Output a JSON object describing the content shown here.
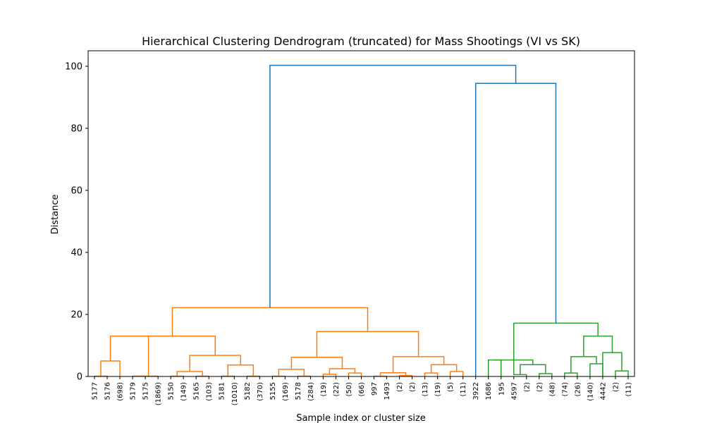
{
  "chart_data": {
    "type": "dendrogram",
    "title": "Hierarchical Clustering Dendrogram (truncated) for Mass Shootings (VI vs SK)",
    "xlabel": "Sample index or cluster size",
    "ylabel": "Distance",
    "ylim": [
      0,
      105
    ],
    "yticks": [
      0,
      20,
      40,
      60,
      80,
      100
    ],
    "grid": false,
    "colors": {
      "above_threshold": "#1f77b4",
      "cluster_1": "#ff7f0e",
      "cluster_2": "#2ca02c"
    },
    "leaves": [
      "5177",
      "5176",
      "(698)",
      "5179",
      "5175",
      "(1869)",
      "5150",
      "(149)",
      "5165",
      "(103)",
      "5181",
      "(1010)",
      "5182",
      "(370)",
      "5155",
      "(169)",
      "5178",
      "(284)",
      "(19)",
      "(22)",
      "(50)",
      "(66)",
      "997",
      "1493",
      "(2)",
      "(2)",
      "(13)",
      "(19)",
      "(5)",
      "(11)",
      "3922",
      "1686",
      "195",
      "4597",
      "(2)",
      "(2)",
      "(48)",
      "(74)",
      "(26)",
      "(140)",
      "4442",
      "(2)",
      "(11)"
    ],
    "merges": [
      {
        "left": 0,
        "right": 1,
        "height": 0.1,
        "color": "cluster_1"
      },
      {
        "left": 0.5,
        "right": 2,
        "height": 5.0,
        "color": "cluster_1"
      },
      {
        "left": 3,
        "right": 4,
        "height": 0.1,
        "color": "cluster_1"
      },
      {
        "left": 3.5,
        "right": 5,
        "height": 0.1,
        "color": "cluster_1"
      },
      {
        "left": 1.25,
        "right": 4.25,
        "height": 13.0,
        "color": "cluster_1"
      },
      {
        "left": 6,
        "right": 7,
        "height": 0.1,
        "color": "cluster_1"
      },
      {
        "left": 8,
        "right": 9,
        "height": 0.1,
        "color": "cluster_1"
      },
      {
        "left": 6.5,
        "right": 8.5,
        "height": 1.6,
        "color": "cluster_1"
      },
      {
        "left": 10,
        "right": 11,
        "height": 0.1,
        "color": "cluster_1"
      },
      {
        "left": 12,
        "right": 13,
        "height": 0.1,
        "color": "cluster_1"
      },
      {
        "left": 10.5,
        "right": 12.5,
        "height": 3.7,
        "color": "cluster_1"
      },
      {
        "left": 7.5,
        "right": 11.5,
        "height": 6.8,
        "color": "cluster_1"
      },
      {
        "left": 2.75,
        "right": 9.5,
        "height": 13.0,
        "color": "cluster_1"
      },
      {
        "left": 14,
        "right": 15,
        "height": 0.1,
        "color": "cluster_1"
      },
      {
        "left": 16,
        "right": 17,
        "height": 0.1,
        "color": "cluster_1"
      },
      {
        "left": 14.5,
        "right": 16.5,
        "height": 2.3,
        "color": "cluster_1"
      },
      {
        "left": 18,
        "right": 19,
        "height": 0.7,
        "color": "cluster_1"
      },
      {
        "left": 20,
        "right": 21,
        "height": 1.1,
        "color": "cluster_1"
      },
      {
        "left": 18.5,
        "right": 20.5,
        "height": 2.5,
        "color": "cluster_1"
      },
      {
        "left": 15.5,
        "right": 19.5,
        "height": 6.2,
        "color": "cluster_1"
      },
      {
        "left": 22,
        "right": 23,
        "height": 0.1,
        "color": "cluster_1"
      },
      {
        "left": 24,
        "right": 25,
        "height": 0.3,
        "color": "cluster_1"
      },
      {
        "left": 22.5,
        "right": 24.5,
        "height": 1.2,
        "color": "cluster_1"
      },
      {
        "left": 26,
        "right": 27,
        "height": 1.1,
        "color": "cluster_1"
      },
      {
        "left": 28,
        "right": 29,
        "height": 1.6,
        "color": "cluster_1"
      },
      {
        "left": 26.5,
        "right": 28.5,
        "height": 3.8,
        "color": "cluster_1"
      },
      {
        "left": 23.5,
        "right": 27.5,
        "height": 6.4,
        "color": "cluster_1"
      },
      {
        "left": 17.5,
        "right": 25.5,
        "height": 14.5,
        "color": "cluster_1"
      },
      {
        "left": 6.125,
        "right": 21.5,
        "height": 22.2,
        "color": "cluster_1"
      },
      {
        "left": 31,
        "right": 32,
        "height": 5.3,
        "color": "cluster_2"
      },
      {
        "left": 33,
        "right": 34,
        "height": 0.6,
        "color": "cluster_2"
      },
      {
        "left": 35,
        "right": 36,
        "height": 0.9,
        "color": "cluster_2"
      },
      {
        "left": 33.5,
        "right": 35.5,
        "height": 3.8,
        "color": "cluster_2"
      },
      {
        "left": 31.5,
        "right": 34.5,
        "height": 5.3,
        "color": "cluster_2"
      },
      {
        "left": 37,
        "right": 38,
        "height": 1.1,
        "color": "cluster_2"
      },
      {
        "left": 39,
        "right": 40,
        "height": 4.1,
        "color": "cluster_2"
      },
      {
        "left": 37.5,
        "right": 39.5,
        "height": 6.4,
        "color": "cluster_2"
      },
      {
        "left": 41,
        "right": 42,
        "height": 1.8,
        "color": "cluster_2"
      },
      {
        "left": 40,
        "right": 41.5,
        "height": 7.7,
        "color": "cluster_2"
      },
      {
        "left": 38.5,
        "right": 40.75,
        "height": 13.0,
        "color": "cluster_2"
      },
      {
        "left": 33.0,
        "right": 39.625,
        "height": 17.2,
        "color": "cluster_2"
      },
      {
        "left": 30,
        "right": 36.3125,
        "height": 94.5,
        "color": "above_threshold"
      },
      {
        "left": 13.8125,
        "right": 33.15625,
        "height": 100.3,
        "color": "above_threshold"
      }
    ]
  }
}
